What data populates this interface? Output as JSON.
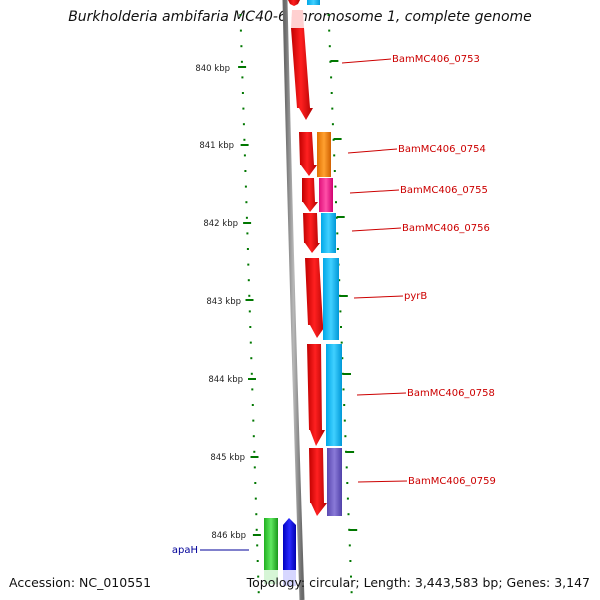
{
  "title": "Burkholderia ambifaria MC40-6 chromosome 1, complete genome",
  "footer": {
    "accession": "Accession: NC_010551",
    "topology": "Topology: circular; Length: 3,443,583 bp; Genes: 3,147"
  },
  "colors": {
    "ruler_tick": "#007700",
    "ruler_label": "#222222",
    "gene_label_forward": "#cc0000",
    "gene_label_reverse": "#000099",
    "backbone": "#888888"
  },
  "ruler": {
    "labels": [
      "840 kbp",
      "841 kbp",
      "842 kbp",
      "843 kbp",
      "844 kbp",
      "845 kbp",
      "846 kbp"
    ]
  },
  "genes": [
    {
      "name": "BamMC406_0753",
      "color": "#ff0000"
    },
    {
      "name": "BamMC406_0754",
      "color": "#ff8c00"
    },
    {
      "name": "BamMC406_0755",
      "color": "#ff1493"
    },
    {
      "name": "BamMC406_0756",
      "color": "#00bfff"
    },
    {
      "name": "pyrB",
      "color": "#00bfff"
    },
    {
      "name": "BamMC406_0758",
      "color": "#00bfff"
    },
    {
      "name": "BamMC406_0759",
      "color": "#7b68c8"
    },
    {
      "name": "apaH",
      "color": "#0000ee"
    }
  ]
}
